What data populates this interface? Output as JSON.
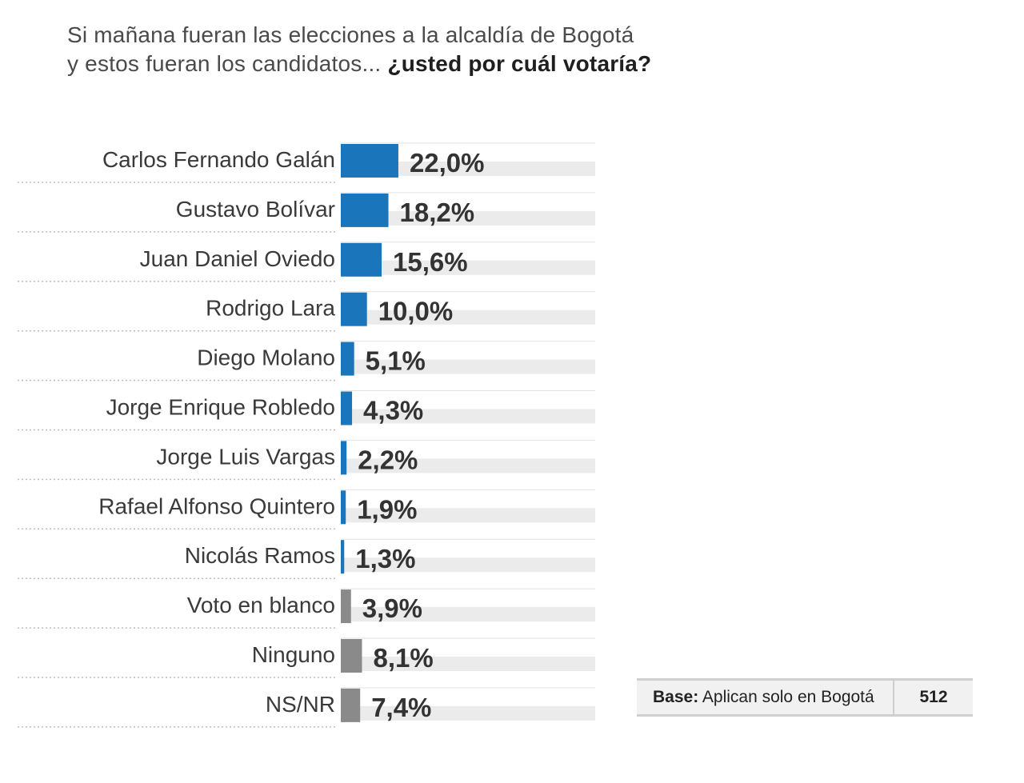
{
  "question": {
    "line1": "Si mañana fueran las elecciones a la alcaldía de Bogotá",
    "line2_plain": "y estos  fueran los candidatos... ",
    "line2_bold": "¿usted por cuál votaría?"
  },
  "colors": {
    "candidate": "#1b75bb",
    "other": "#8a8a8a",
    "track": "#ebebeb",
    "dotted_line": "#bdbdbd"
  },
  "chart_data": {
    "type": "bar",
    "orientation": "horizontal",
    "unit": "%",
    "categories": [
      "Carlos Fernando Galán",
      "Gustavo Bolívar",
      "Juan Daniel Oviedo",
      "Rodrigo Lara",
      "Diego Molano",
      "Jorge Enrique Robledo",
      "Jorge Luis Vargas",
      "Rafael Alfonso Quintero",
      "Nicolás Ramos",
      "Voto en blanco",
      "Ninguno",
      "NS/NR"
    ],
    "values": [
      22.0,
      18.2,
      15.6,
      10.0,
      5.1,
      4.3,
      2.2,
      1.9,
      1.3,
      3.9,
      8.1,
      7.4
    ],
    "value_labels": [
      "22,0%",
      "18,2%",
      "15,6%",
      "10,0%",
      "5,1%",
      "4,3%",
      "2,2%",
      "1,9%",
      "1,3%",
      "3,9%",
      "8,1%",
      "7,4%"
    ],
    "groups": [
      "candidate",
      "candidate",
      "candidate",
      "candidate",
      "candidate",
      "candidate",
      "candidate",
      "candidate",
      "candidate",
      "other",
      "other",
      "other"
    ]
  },
  "base": {
    "key": "Base:",
    "text": " Aplican solo en Bogotá",
    "n": "512"
  }
}
